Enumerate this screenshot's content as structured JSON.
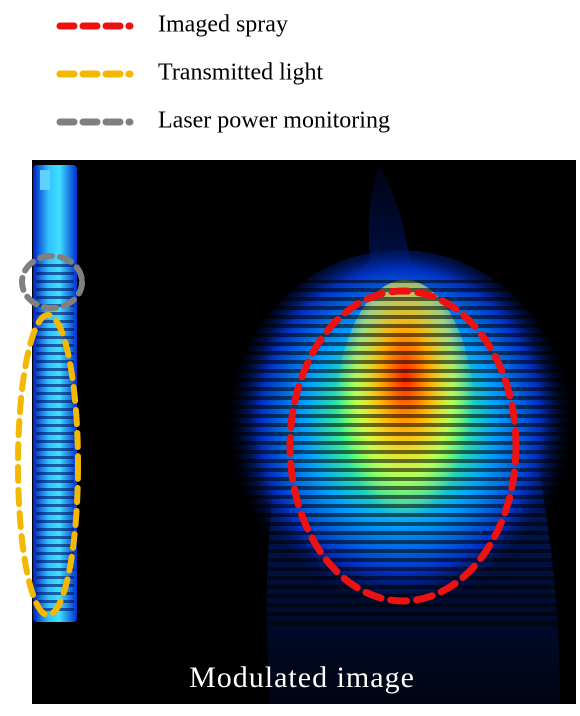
{
  "legend": {
    "items": [
      "Imaged spray",
      "Transmitted light",
      "Laser power monitoring"
    ]
  },
  "image": {
    "caption": "Modulated image"
  }
}
